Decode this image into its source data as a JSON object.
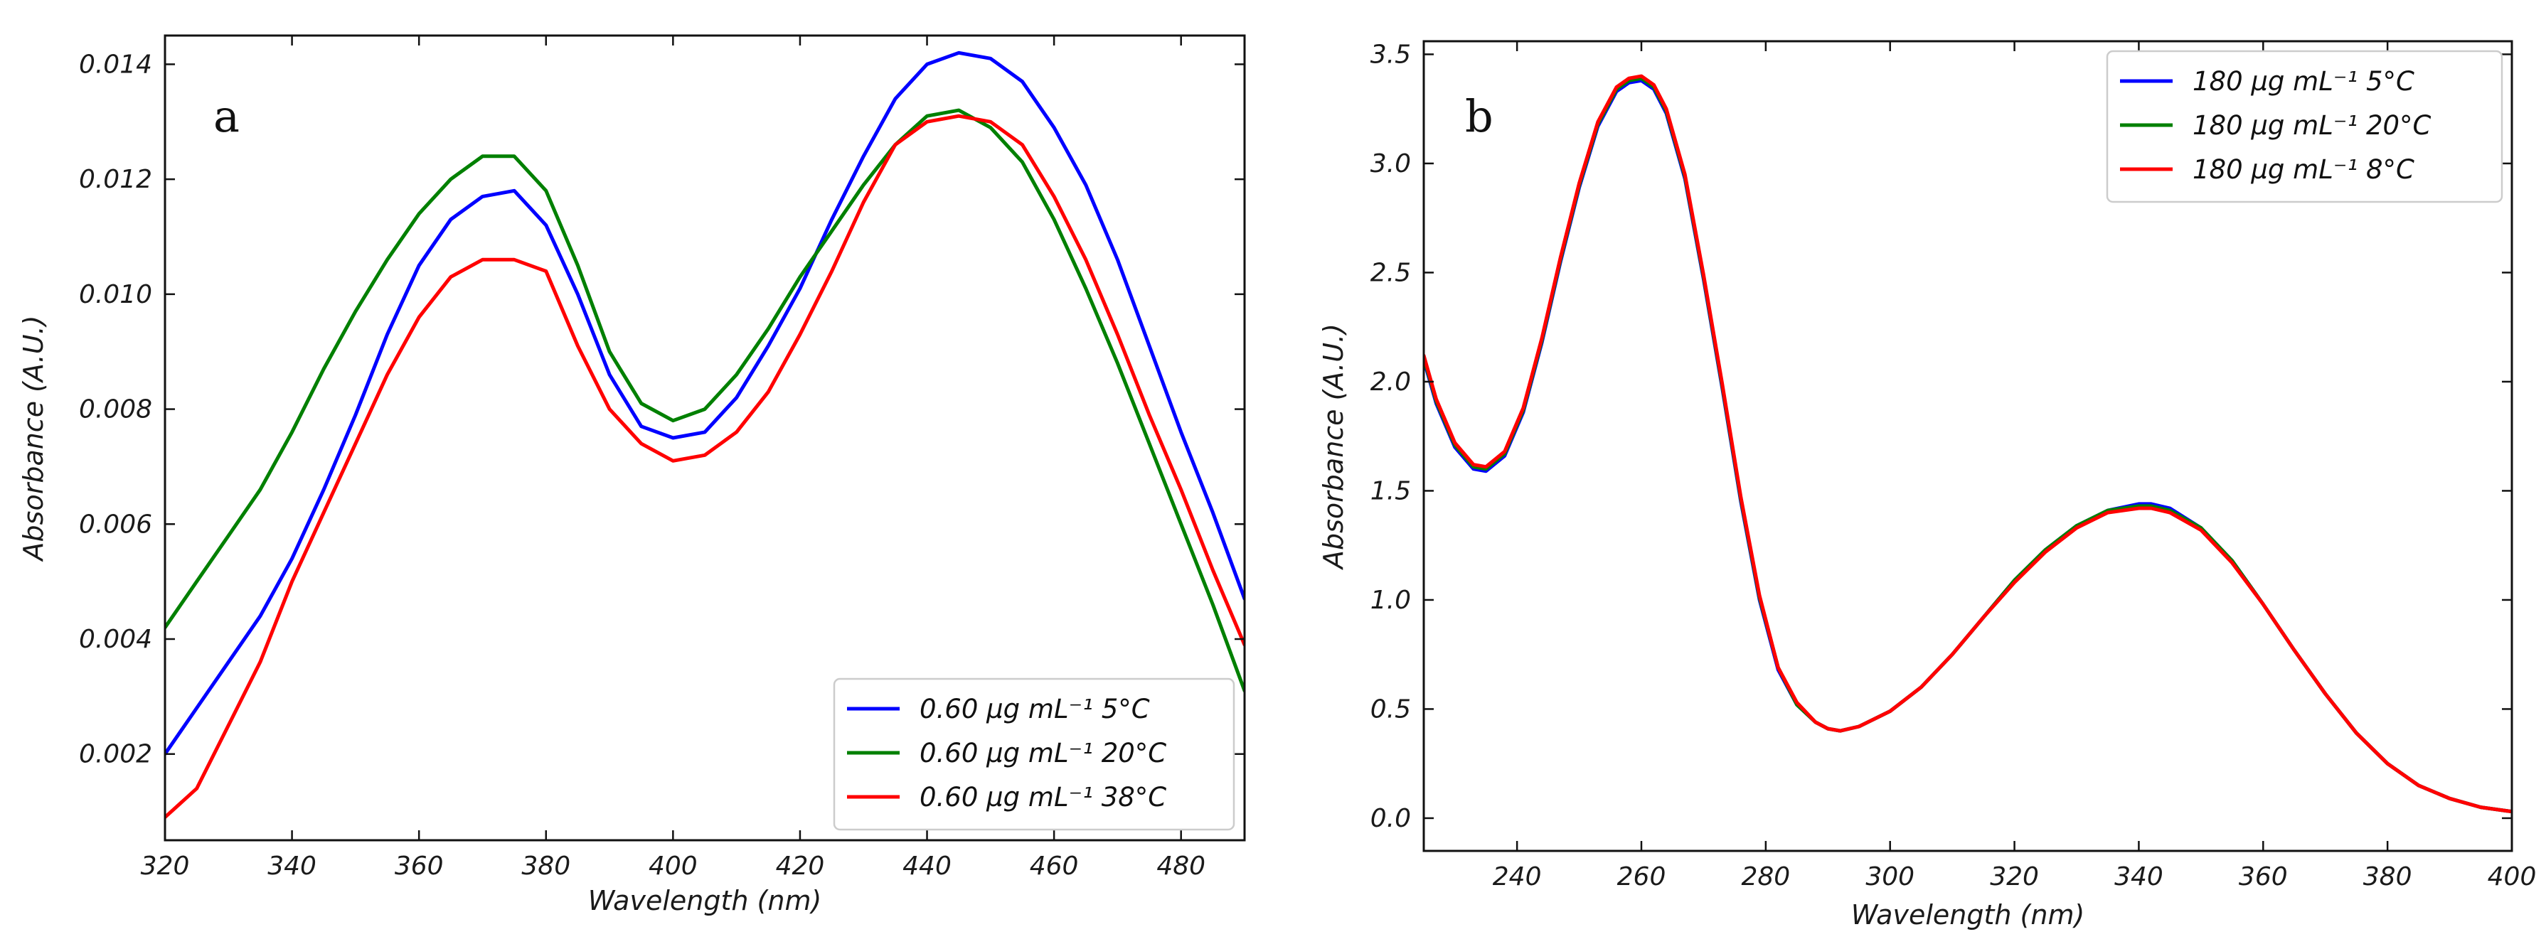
{
  "chart_data": [
    {
      "type": "line",
      "panel_label": "a",
      "xlabel": "Wavelength (nm)",
      "ylabel": "Absorbance (A.U.)",
      "xlim": [
        320,
        490
      ],
      "ylim": [
        0.0005,
        0.0145
      ],
      "xticks": [
        320,
        340,
        360,
        380,
        400,
        420,
        440,
        460,
        480
      ],
      "xtick_labels": [
        "320",
        "340",
        "360",
        "380",
        "400",
        "420",
        "440",
        "460",
        "480"
      ],
      "yticks": [
        0.002,
        0.004,
        0.006,
        0.008,
        0.01,
        0.012,
        0.014
      ],
      "ytick_labels": [
        "0.002",
        "0.004",
        "0.006",
        "0.008",
        "0.010",
        "0.012",
        "0.014"
      ],
      "legend_position": "lower-right",
      "series": [
        {
          "name": "0.60 µg mL⁻¹ 5°C",
          "color": "#0000ff",
          "x": [
            320,
            325,
            330,
            335,
            340,
            345,
            350,
            355,
            360,
            365,
            370,
            375,
            380,
            385,
            390,
            395,
            400,
            405,
            410,
            415,
            420,
            425,
            430,
            435,
            440,
            445,
            450,
            455,
            460,
            465,
            470,
            475,
            480,
            485,
            490
          ],
          "y": [
            0.002,
            0.0028,
            0.0036,
            0.0044,
            0.0054,
            0.0066,
            0.0079,
            0.0093,
            0.0105,
            0.0113,
            0.0117,
            0.0118,
            0.0112,
            0.01,
            0.0086,
            0.0077,
            0.0075,
            0.0076,
            0.0082,
            0.0091,
            0.0101,
            0.0113,
            0.0124,
            0.0134,
            0.014,
            0.0142,
            0.0141,
            0.0137,
            0.0129,
            0.0119,
            0.0106,
            0.0091,
            0.0076,
            0.0062,
            0.0047
          ]
        },
        {
          "name": "0.60 µg mL⁻¹ 20°C",
          "color": "#008000",
          "x": [
            320,
            325,
            330,
            335,
            340,
            345,
            350,
            355,
            360,
            365,
            370,
            375,
            380,
            385,
            390,
            395,
            400,
            405,
            410,
            415,
            420,
            425,
            430,
            435,
            440,
            445,
            450,
            455,
            460,
            465,
            470,
            475,
            480,
            485,
            490
          ],
          "y": [
            0.0042,
            0.005,
            0.0058,
            0.0066,
            0.0076,
            0.0087,
            0.0097,
            0.0106,
            0.0114,
            0.012,
            0.0124,
            0.0124,
            0.0118,
            0.0105,
            0.009,
            0.0081,
            0.0078,
            0.008,
            0.0086,
            0.0094,
            0.0103,
            0.0111,
            0.0119,
            0.0126,
            0.0131,
            0.0132,
            0.0129,
            0.0123,
            0.0113,
            0.0101,
            0.0088,
            0.0074,
            0.006,
            0.0046,
            0.0031
          ]
        },
        {
          "name": "0.60 µg mL⁻¹ 38°C",
          "color": "#ff0000",
          "x": [
            320,
            325,
            330,
            335,
            340,
            345,
            350,
            355,
            360,
            365,
            370,
            375,
            380,
            385,
            390,
            395,
            400,
            405,
            410,
            415,
            420,
            425,
            430,
            435,
            440,
            445,
            450,
            455,
            460,
            465,
            470,
            475,
            480,
            485,
            490
          ],
          "y": [
            0.0009,
            0.0014,
            0.0025,
            0.0036,
            0.005,
            0.0062,
            0.0074,
            0.0086,
            0.0096,
            0.0103,
            0.0106,
            0.0106,
            0.0104,
            0.0091,
            0.008,
            0.0074,
            0.0071,
            0.0072,
            0.0076,
            0.0083,
            0.0093,
            0.0104,
            0.0116,
            0.0126,
            0.013,
            0.0131,
            0.013,
            0.0126,
            0.0117,
            0.0106,
            0.0093,
            0.0079,
            0.0066,
            0.0052,
            0.0039
          ]
        }
      ]
    },
    {
      "type": "line",
      "panel_label": "b",
      "xlabel": "Wavelength (nm)",
      "ylabel": "Absorbance (A.U.)",
      "xlim": [
        225,
        400
      ],
      "ylim": [
        -0.15,
        3.56
      ],
      "xticks": [
        240,
        260,
        280,
        300,
        320,
        340,
        360,
        380,
        400
      ],
      "xtick_labels": [
        "240",
        "260",
        "280",
        "300",
        "320",
        "340",
        "360",
        "380",
        "400"
      ],
      "yticks": [
        0.0,
        0.5,
        1.0,
        1.5,
        2.0,
        2.5,
        3.0,
        3.5
      ],
      "ytick_labels": [
        "0.0",
        "0.5",
        "1.0",
        "1.5",
        "2.0",
        "2.5",
        "3.0",
        "3.5"
      ],
      "legend_position": "top-right",
      "series": [
        {
          "name": "180 µg mL⁻¹ 5°C",
          "color": "#0000ff",
          "x": [
            225,
            227,
            230,
            233,
            235,
            238,
            241,
            244,
            247,
            250,
            253,
            256,
            258,
            260,
            262,
            264,
            267,
            270,
            273,
            276,
            279,
            282,
            285,
            288,
            290,
            292,
            295,
            300,
            305,
            310,
            315,
            320,
            325,
            330,
            335,
            340,
            342,
            345,
            350,
            355,
            360,
            365,
            370,
            375,
            380,
            385,
            390,
            395,
            400
          ],
          "y": [
            2.1,
            1.9,
            1.7,
            1.6,
            1.59,
            1.66,
            1.86,
            2.18,
            2.55,
            2.89,
            3.17,
            3.33,
            3.37,
            3.38,
            3.34,
            3.23,
            2.93,
            2.47,
            1.97,
            1.45,
            1.0,
            0.68,
            0.52,
            0.44,
            0.41,
            0.4,
            0.42,
            0.49,
            0.6,
            0.75,
            0.92,
            1.09,
            1.23,
            1.34,
            1.41,
            1.44,
            1.44,
            1.42,
            1.33,
            1.18,
            0.98,
            0.77,
            0.57,
            0.39,
            0.25,
            0.15,
            0.09,
            0.05,
            0.03
          ]
        },
        {
          "name": "180 µg mL⁻¹ 20°C",
          "color": "#008000",
          "x": [
            225,
            227,
            230,
            233,
            235,
            238,
            241,
            244,
            247,
            250,
            253,
            256,
            258,
            260,
            262,
            264,
            267,
            270,
            273,
            276,
            279,
            282,
            285,
            288,
            290,
            292,
            295,
            300,
            305,
            310,
            315,
            320,
            325,
            330,
            335,
            340,
            342,
            345,
            350,
            355,
            360,
            365,
            370,
            375,
            380,
            385,
            390,
            395,
            400
          ],
          "y": [
            2.11,
            1.91,
            1.71,
            1.61,
            1.6,
            1.67,
            1.87,
            2.19,
            2.56,
            2.9,
            3.18,
            3.34,
            3.38,
            3.39,
            3.35,
            3.24,
            2.94,
            2.48,
            1.98,
            1.46,
            1.01,
            0.69,
            0.52,
            0.44,
            0.41,
            0.4,
            0.42,
            0.49,
            0.6,
            0.75,
            0.92,
            1.09,
            1.23,
            1.34,
            1.41,
            1.43,
            1.43,
            1.41,
            1.33,
            1.18,
            0.98,
            0.77,
            0.57,
            0.39,
            0.25,
            0.15,
            0.09,
            0.05,
            0.03
          ]
        },
        {
          "name": "180 µg mL⁻¹ 8°C",
          "color": "#ff0000",
          "x": [
            225,
            227,
            230,
            233,
            235,
            238,
            241,
            244,
            247,
            250,
            253,
            256,
            258,
            260,
            262,
            264,
            267,
            270,
            273,
            276,
            279,
            282,
            285,
            288,
            290,
            292,
            295,
            300,
            305,
            310,
            315,
            320,
            325,
            330,
            335,
            340,
            342,
            345,
            350,
            355,
            360,
            365,
            370,
            375,
            380,
            385,
            390,
            395,
            400
          ],
          "y": [
            2.12,
            1.92,
            1.72,
            1.62,
            1.61,
            1.68,
            1.88,
            2.2,
            2.57,
            2.91,
            3.19,
            3.35,
            3.39,
            3.4,
            3.36,
            3.25,
            2.95,
            2.49,
            1.99,
            1.47,
            1.02,
            0.69,
            0.53,
            0.44,
            0.41,
            0.4,
            0.42,
            0.49,
            0.6,
            0.75,
            0.92,
            1.08,
            1.22,
            1.33,
            1.4,
            1.42,
            1.42,
            1.4,
            1.32,
            1.17,
            0.98,
            0.77,
            0.57,
            0.39,
            0.25,
            0.15,
            0.09,
            0.05,
            0.03
          ]
        }
      ]
    }
  ]
}
